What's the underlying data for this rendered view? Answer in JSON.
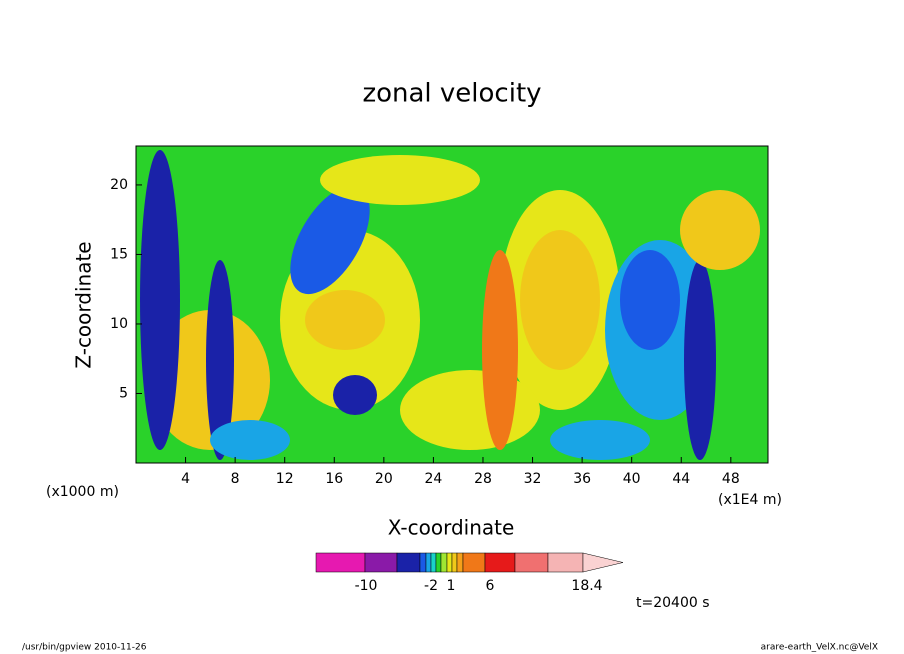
{
  "chart_data": {
    "type": "contour",
    "title": "zonal velocity",
    "x_label": "X-coordinate",
    "y_label": "Z-coordinate",
    "x_unit": "(x1000 m)",
    "x_unit_right": "(x1E4 m)",
    "xlim": [
      0,
      51
    ],
    "xticks": [
      4,
      8,
      12,
      16,
      20,
      24,
      28,
      32,
      36,
      40,
      44,
      48
    ],
    "ylim": [
      0,
      22.8
    ],
    "yticks": [
      5,
      10,
      15,
      20
    ],
    "colorbar_colors": [
      "#e619b0",
      "#8a1aa8",
      "#1a22a8",
      "#1a5ae6",
      "#19a5e6",
      "#19d2c8",
      "#2ad22a",
      "#a0e632",
      "#e6e619",
      "#f0c81a",
      "#f5a01a",
      "#f07818",
      "#e61a1a",
      "#f07070",
      "#f5b4b4",
      "#fad2d2"
    ],
    "colorbar_labels": [
      -10,
      -2,
      1,
      6,
      18.4
    ],
    "time_label": "t=20400 s",
    "footer_left": "/usr/bin/gpview   2010-11-26",
    "footer_right": "arare-earth_VelX.nc@VelX"
  }
}
